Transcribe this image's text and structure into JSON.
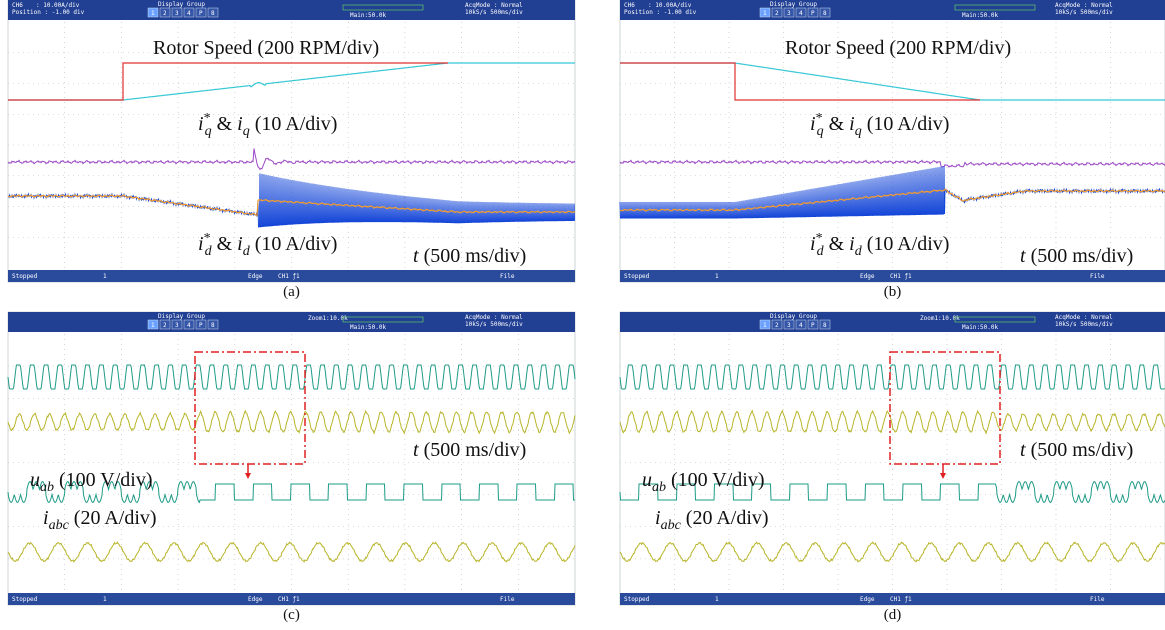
{
  "panels": [
    {
      "header": {
        "channel": "CH6",
        "scale": ": 10.00A/div",
        "position": "Position : -1.00 div",
        "display_group": "Display Group",
        "tabs": [
          "1",
          "2",
          "3",
          "4",
          "P",
          "8"
        ],
        "main": "Main:50.0k",
        "acq_mode": "AcqMode : Normal",
        "rate": "10kS/s    500ms/div"
      },
      "footer": {
        "status": "Stopped",
        "count": "1",
        "trigger": "Edge",
        "source": "CH1 ƒ1",
        "file": "File"
      },
      "labels": {
        "speed": [
          "Rotor Speed (200 RPM/div)"
        ],
        "iq": [
          "i",
          "*",
          "q",
          " & ",
          "i",
          "q",
          " (10 A/div)"
        ],
        "id": [
          "i",
          "*",
          "d",
          " & ",
          "i",
          "d",
          " (10 A/div)"
        ],
        "time": [
          "t",
          " (500 ms/div)"
        ]
      },
      "caption": "(a)"
    },
    {
      "header": {
        "channel": "CH6",
        "scale": ": 10.00A/div",
        "position": "Position : -1.00 div",
        "display_group": "Display Group",
        "tabs": [
          "1",
          "2",
          "3",
          "4",
          "P",
          "8"
        ],
        "main": "Main:50.0k",
        "acq_mode": "AcqMode : Normal",
        "rate": "10kS/s    500ms/div"
      },
      "footer": {
        "status": "Stopped",
        "count": "1",
        "trigger": "Edge",
        "source": "CH1 ƒ1",
        "file": "File"
      },
      "labels": {
        "speed": [
          "Rotor Speed (200 RPM/div)"
        ],
        "iq": [
          "i",
          "*",
          "q",
          " & ",
          "i",
          "q",
          " (10 A/div)"
        ],
        "id": [
          "i",
          "*",
          "d",
          " & ",
          "i",
          "d",
          " (10 A/div)"
        ],
        "time": [
          "t",
          " (500 ms/div)"
        ]
      },
      "caption": "(b)"
    },
    {
      "header": {
        "display_group": "Display Group",
        "tabs": [
          "1",
          "2",
          "3",
          "4",
          "P",
          "8"
        ],
        "zoom": "Zoom1:10.0k",
        "main": "Main:50.0k",
        "acq_mode": "AcqMode : Normal",
        "rate": "10kS/s    500ms/div"
      },
      "footer": {
        "status": "Stopped",
        "count": "1",
        "trigger": "Edge",
        "source": "CH1 ƒ1",
        "file": "File"
      },
      "labels": {
        "time": [
          "t",
          " (500 ms/div)"
        ],
        "uab": [
          "u",
          "ab",
          " (100 V/div)"
        ],
        "iabc": [
          "i",
          "abc",
          " (20 A/div)"
        ]
      },
      "caption": "(c)"
    },
    {
      "header": {
        "display_group": "Display Group",
        "tabs": [
          "1",
          "2",
          "3",
          "4",
          "P",
          "8"
        ],
        "zoom": "Zoom1:10.0k",
        "main": "Main:50.0k",
        "acq_mode": "AcqMode : Normal",
        "rate": "10kS/s    500ms/div"
      },
      "footer": {
        "status": "Stopped",
        "count": "1",
        "trigger": "Edge",
        "source": "CH1 ƒ1",
        "file": "File"
      },
      "labels": {
        "time": [
          "t",
          " (500 ms/div)"
        ],
        "uab": [
          "u",
          "ab",
          " (100 V/div)"
        ],
        "iabc": [
          "i",
          "abc",
          " (20 A/div)"
        ]
      },
      "caption": "(d)"
    }
  ]
}
